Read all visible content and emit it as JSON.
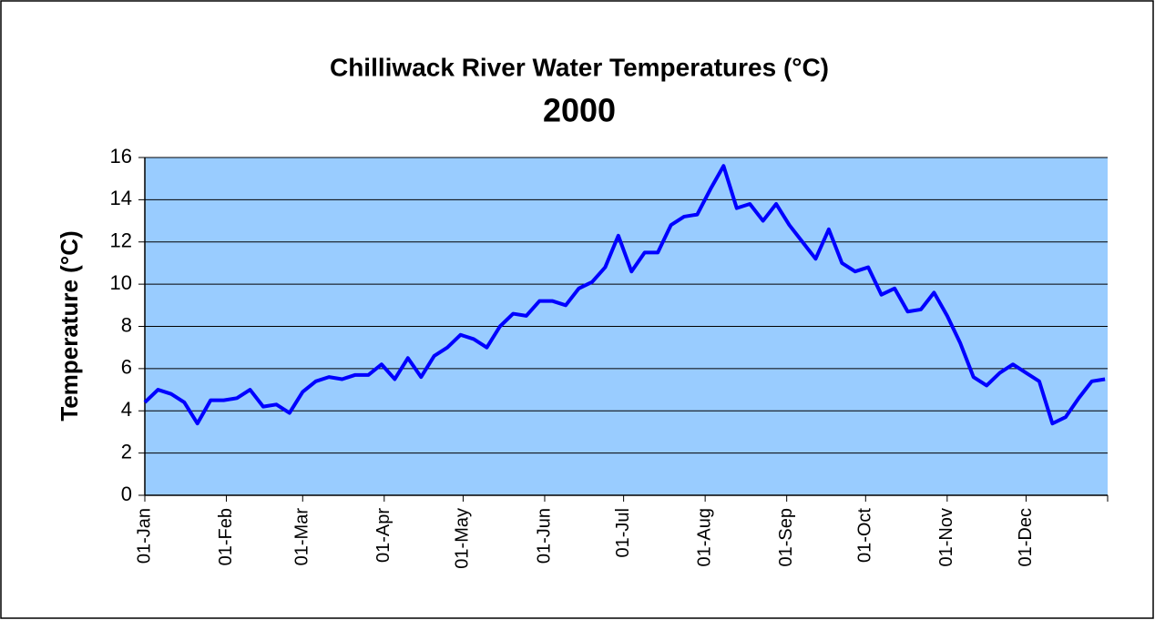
{
  "chart_data": {
    "type": "line",
    "title": "Chilliwack River Water Temperatures (°C)",
    "subtitle": "2000",
    "y_label": "Temperature (°C)",
    "x": [
      0,
      5,
      10,
      15,
      20,
      25,
      30,
      35,
      40,
      45,
      50,
      55,
      60,
      65,
      70,
      75,
      80,
      85,
      90,
      95,
      100,
      105,
      110,
      115,
      120,
      125,
      130,
      135,
      140,
      145,
      150,
      155,
      160,
      165,
      170,
      175,
      180,
      185,
      190,
      195,
      200,
      205,
      210,
      215,
      220,
      225,
      230,
      235,
      240,
      245,
      250,
      255,
      260,
      265,
      270,
      275,
      280,
      285,
      290,
      295,
      300,
      305,
      310,
      315,
      320,
      325,
      330,
      335,
      340,
      345,
      350,
      355,
      360,
      365
    ],
    "series": [
      {
        "name": "Temperature",
        "color": "#0000ff",
        "values": [
          4.4,
          5.0,
          4.8,
          4.4,
          3.4,
          4.5,
          4.5,
          4.6,
          5.0,
          4.2,
          4.3,
          3.9,
          4.9,
          5.4,
          5.6,
          5.5,
          5.7,
          5.7,
          6.2,
          5.5,
          6.5,
          5.6,
          6.6,
          7.0,
          7.6,
          7.4,
          7.0,
          8.0,
          8.6,
          8.5,
          9.2,
          9.2,
          9.0,
          9.8,
          10.1,
          10.8,
          12.3,
          10.6,
          11.5,
          11.5,
          12.8,
          13.2,
          13.3,
          14.5,
          15.6,
          13.6,
          13.8,
          13.0,
          13.8,
          12.8,
          12.0,
          11.2,
          12.6,
          11.0,
          10.6,
          10.8,
          9.5,
          9.8,
          8.7,
          8.8,
          9.6,
          8.5,
          7.2,
          5.6,
          5.2,
          5.8,
          6.2,
          5.8,
          5.4,
          3.4,
          3.7,
          4.6,
          5.4,
          5.5
        ]
      }
    ],
    "xlim": [
      0,
      366
    ],
    "xticks": [
      {
        "value": 0,
        "label": "01-Jan"
      },
      {
        "value": 31,
        "label": "01-Feb"
      },
      {
        "value": 60,
        "label": "01-Mar"
      },
      {
        "value": 91,
        "label": "01-Apr"
      },
      {
        "value": 121,
        "label": "01-May"
      },
      {
        "value": 152,
        "label": "01-Jun"
      },
      {
        "value": 182,
        "label": "01-Jul"
      },
      {
        "value": 213,
        "label": "01-Aug"
      },
      {
        "value": 244,
        "label": "01-Sep"
      },
      {
        "value": 274,
        "label": "01-Oct"
      },
      {
        "value": 305,
        "label": "01-Nov"
      },
      {
        "value": 335,
        "label": "01-Dec"
      }
    ],
    "ylim": [
      0,
      16
    ],
    "yticks": [
      0,
      2,
      4,
      6,
      8,
      10,
      12,
      14,
      16
    ],
    "grid": true
  }
}
